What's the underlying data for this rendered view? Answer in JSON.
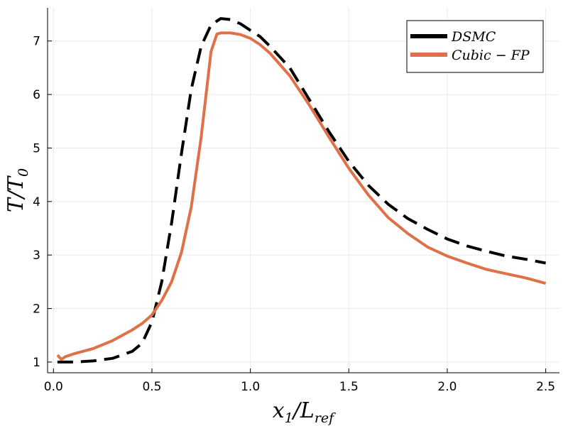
{
  "chart_data": {
    "type": "line",
    "xlabel_main": "x",
    "xlabel_sub": "1",
    "xlabel_mid": "/L",
    "xlabel_sub2": "ref",
    "ylabel_main": "T/T",
    "ylabel_sub": "0",
    "xlim": [
      -0.03,
      2.57
    ],
    "ylim": [
      0.8,
      7.62
    ],
    "xticks": [
      0.0,
      0.5,
      1.0,
      1.5,
      2.0,
      2.5
    ],
    "xtick_labels": [
      "0.0",
      "0.5",
      "1.0",
      "1.5",
      "2.0",
      "2.5"
    ],
    "yticks": [
      1,
      2,
      3,
      4,
      5,
      6,
      7
    ],
    "ytick_labels": [
      "1",
      "2",
      "3",
      "4",
      "5",
      "6",
      "7"
    ],
    "grid": true,
    "legend_position": "top-right",
    "series": [
      {
        "name": "DSMC",
        "color": "#000000",
        "dashed": true,
        "x": [
          0.02,
          0.1,
          0.2,
          0.3,
          0.4,
          0.45,
          0.5,
          0.55,
          0.6,
          0.65,
          0.7,
          0.75,
          0.8,
          0.85,
          0.9,
          0.95,
          1.0,
          1.05,
          1.1,
          1.2,
          1.3,
          1.4,
          1.5,
          1.6,
          1.7,
          1.8,
          1.9,
          2.0,
          2.1,
          2.2,
          2.3,
          2.4,
          2.5
        ],
        "y": [
          1.0,
          1.0,
          1.02,
          1.07,
          1.2,
          1.35,
          1.75,
          2.5,
          3.6,
          4.9,
          6.1,
          6.9,
          7.3,
          7.42,
          7.4,
          7.32,
          7.2,
          7.08,
          6.9,
          6.5,
          5.9,
          5.3,
          4.75,
          4.3,
          3.95,
          3.68,
          3.48,
          3.3,
          3.17,
          3.07,
          2.98,
          2.92,
          2.85
        ]
      },
      {
        "name": "Cubic-FP",
        "color": "#e07048",
        "dashed": false,
        "x": [
          0.02,
          0.04,
          0.06,
          0.1,
          0.2,
          0.3,
          0.4,
          0.45,
          0.5,
          0.55,
          0.6,
          0.65,
          0.7,
          0.75,
          0.8,
          0.83,
          0.85,
          0.9,
          0.95,
          1.0,
          1.05,
          1.1,
          1.2,
          1.3,
          1.4,
          1.5,
          1.6,
          1.7,
          1.8,
          1.9,
          2.0,
          2.1,
          2.2,
          2.3,
          2.4,
          2.5
        ],
        "y": [
          1.13,
          1.05,
          1.1,
          1.15,
          1.25,
          1.4,
          1.6,
          1.72,
          1.88,
          2.15,
          2.5,
          3.05,
          3.9,
          5.2,
          6.8,
          7.13,
          7.15,
          7.15,
          7.12,
          7.05,
          6.93,
          6.77,
          6.35,
          5.8,
          5.2,
          4.62,
          4.12,
          3.7,
          3.4,
          3.15,
          2.98,
          2.85,
          2.73,
          2.65,
          2.57,
          2.47
        ]
      }
    ]
  },
  "legend": [
    {
      "label": "DSMC"
    },
    {
      "label": "Cubic − FP"
    }
  ]
}
